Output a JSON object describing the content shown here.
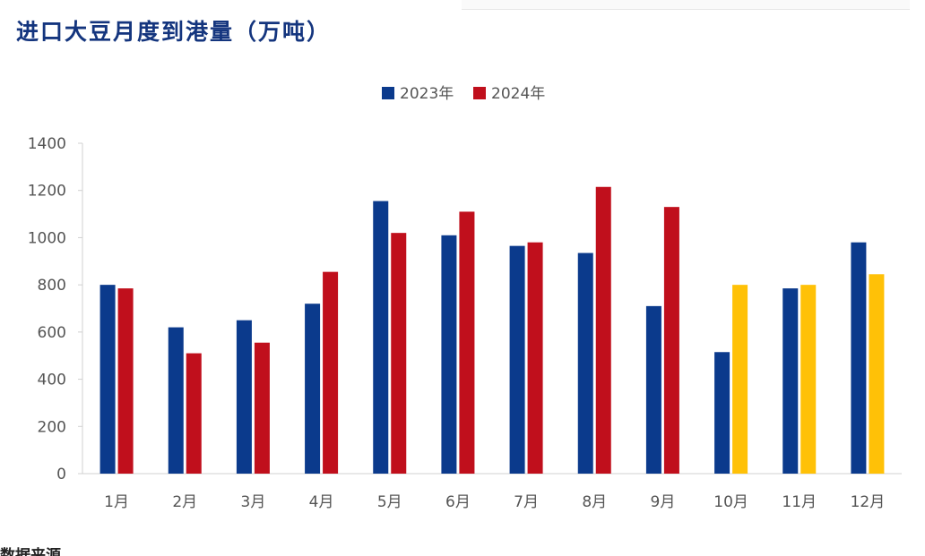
{
  "title": "进口大豆月度到港量（万吨）",
  "footer": "数据来源",
  "colors": {
    "series_2023": "#0b3a8c",
    "series_2024": "#c00f1c",
    "forecast": "#ffc107",
    "axis": "#d0d0d0",
    "title": "#14357e"
  },
  "chart_data": {
    "type": "bar",
    "categories": [
      "1月",
      "2月",
      "3月",
      "4月",
      "5月",
      "6月",
      "7月",
      "8月",
      "9月",
      "10月",
      "11月",
      "12月"
    ],
    "series": [
      {
        "name": "2023年",
        "values": [
          800,
          620,
          650,
          720,
          1155,
          1010,
          965,
          935,
          710,
          515,
          785,
          980
        ]
      },
      {
        "name": "2024年",
        "values": [
          785,
          510,
          555,
          855,
          1020,
          1110,
          980,
          1215,
          1130,
          800,
          800,
          845
        ]
      }
    ],
    "highlighted_2024_months": [
      "10月",
      "11月",
      "12月"
    ],
    "xlabel": "",
    "ylabel": "",
    "ylim": [
      0,
      1400
    ],
    "yticks": [
      "0",
      "200",
      "400",
      "600",
      "800",
      "1000",
      "1200",
      "1400"
    ],
    "grid": false,
    "legend_position": "top-center"
  }
}
